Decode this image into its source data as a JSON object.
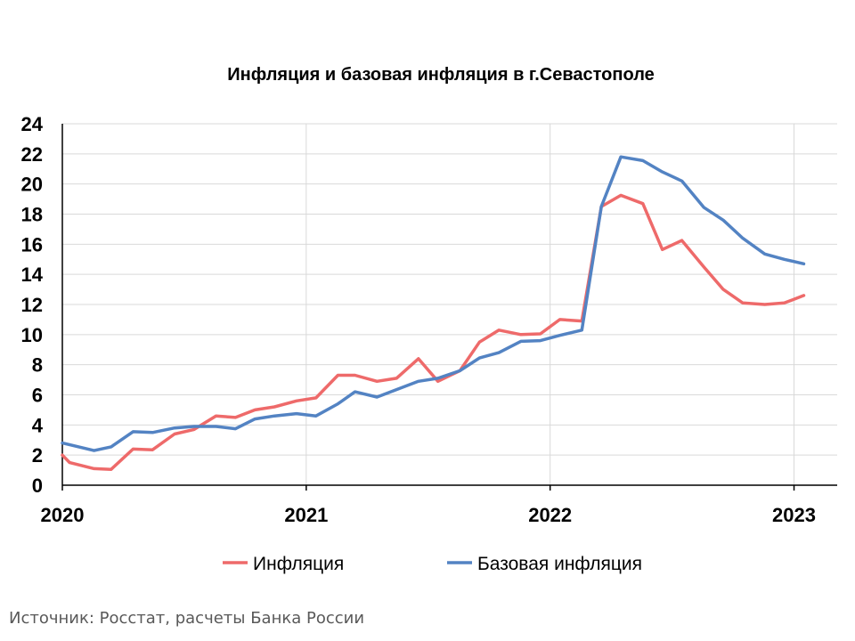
{
  "chart_data": {
    "type": "line",
    "title": "Инфляция и базовая инфляция в г.Севастополе",
    "xlabel": "",
    "ylabel": "",
    "ylim": [
      0,
      24
    ],
    "yticks": [
      0,
      2,
      4,
      6,
      8,
      10,
      12,
      14,
      16,
      18,
      20,
      22,
      24
    ],
    "xlim": [
      2020.0,
      2023.25
    ],
    "xticks": [
      {
        "value": 2020,
        "label": "2020"
      },
      {
        "value": 2021,
        "label": "2021"
      },
      {
        "value": 2022,
        "label": "2022"
      },
      {
        "value": 2023,
        "label": "2023"
      }
    ],
    "grid": true,
    "legend_position": "bottom",
    "series": [
      {
        "name": "Инфляция",
        "color": "#ee6a6a",
        "x": [
          2020.0,
          2020.03,
          2020.13,
          2020.2,
          2020.29,
          2020.37,
          2020.46,
          2020.54,
          2020.63,
          2020.71,
          2020.79,
          2020.87,
          2020.96,
          2021.04,
          2021.13,
          2021.2,
          2021.29,
          2021.37,
          2021.46,
          2021.54,
          2021.63,
          2021.71,
          2021.79,
          2021.88,
          2021.96,
          2022.04,
          2022.13,
          2022.21,
          2022.29,
          2022.38,
          2022.46,
          2022.54,
          2022.63,
          2022.71,
          2022.79,
          2022.88,
          2022.96,
          2023.04
        ],
        "values": [
          2.0,
          1.5,
          1.1,
          1.05,
          2.4,
          2.35,
          3.4,
          3.7,
          4.6,
          4.5,
          5.0,
          5.2,
          5.6,
          5.8,
          7.3,
          7.3,
          6.9,
          7.1,
          8.4,
          6.9,
          7.6,
          9.5,
          10.3,
          10.0,
          10.05,
          11.0,
          10.9,
          18.5,
          19.25,
          18.7,
          15.65,
          16.25,
          14.5,
          13.0,
          12.1,
          12.0,
          12.1,
          12.6
        ]
      },
      {
        "name": "Базовая инфляция",
        "color": "#5383c3",
        "x": [
          2020.0,
          2020.13,
          2020.2,
          2020.29,
          2020.37,
          2020.46,
          2020.54,
          2020.63,
          2020.71,
          2020.79,
          2020.87,
          2020.96,
          2021.04,
          2021.13,
          2021.2,
          2021.29,
          2021.37,
          2021.46,
          2021.54,
          2021.63,
          2021.71,
          2021.79,
          2021.88,
          2021.96,
          2022.04,
          2022.13,
          2022.21,
          2022.29,
          2022.38,
          2022.46,
          2022.54,
          2022.63,
          2022.71,
          2022.79,
          2022.88,
          2022.96,
          2023.04
        ],
        "values": [
          2.8,
          2.3,
          2.55,
          3.55,
          3.5,
          3.8,
          3.9,
          3.9,
          3.75,
          4.4,
          4.6,
          4.75,
          4.6,
          5.4,
          6.2,
          5.85,
          6.35,
          6.9,
          7.1,
          7.6,
          8.45,
          8.8,
          9.55,
          9.6,
          9.95,
          10.3,
          18.5,
          21.8,
          21.55,
          20.8,
          20.2,
          18.45,
          17.6,
          16.4,
          15.35,
          15.0,
          14.7
        ]
      }
    ]
  },
  "footer": {
    "source": "Источник: Росстат, расчеты Банка России"
  }
}
